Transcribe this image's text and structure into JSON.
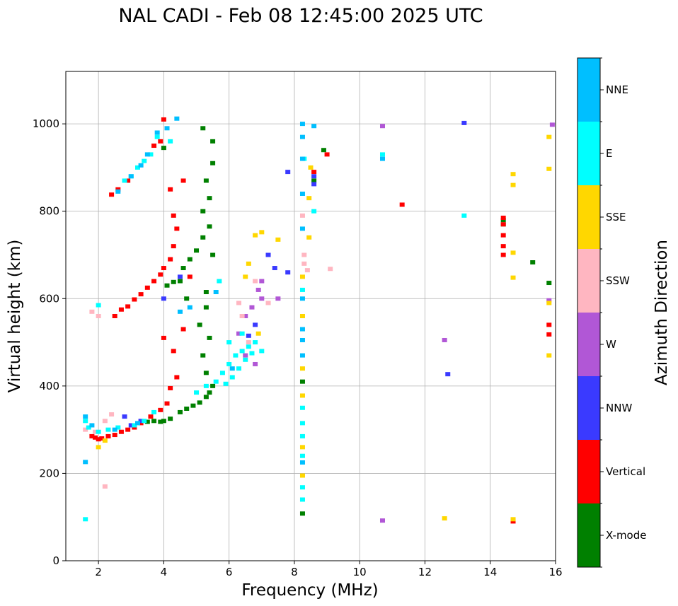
{
  "chart_data": {
    "type": "scatter",
    "title": "NAL CADI - Feb 08 12:45:00 2025 UTC",
    "xlabel": "Frequency (MHz)",
    "ylabel": "Virtual height (km)",
    "xlim": [
      1,
      16
    ],
    "ylim": [
      0,
      1120
    ],
    "xticks": [
      2,
      4,
      6,
      8,
      10,
      12,
      14,
      16
    ],
    "yticks": [
      0,
      200,
      400,
      600,
      800,
      1000
    ],
    "grid": true,
    "colorbar": {
      "label": "Azimuth Direction",
      "categories": [
        {
          "name": "X-mode",
          "color": "#008000"
        },
        {
          "name": "Vertical",
          "color": "#ff0000"
        },
        {
          "name": "NNW",
          "color": "#3a3aff"
        },
        {
          "name": "W",
          "color": "#b157d6"
        },
        {
          "name": "SSW",
          "color": "#ffb6c1"
        },
        {
          "name": "SSE",
          "color": "#ffd700"
        },
        {
          "name": "E",
          "color": "#00ffff"
        },
        {
          "name": "NNE",
          "color": "#00bfff"
        }
      ]
    },
    "series": [
      {
        "name": "X-mode",
        "points": [
          [
            3.5,
            318
          ],
          [
            3.7,
            320
          ],
          [
            3.9,
            318
          ],
          [
            4.0,
            320
          ],
          [
            4.2,
            325
          ],
          [
            4.5,
            340
          ],
          [
            4.7,
            348
          ],
          [
            4.9,
            355
          ],
          [
            5.1,
            362
          ],
          [
            5.3,
            375
          ],
          [
            5.4,
            385
          ],
          [
            5.5,
            400
          ],
          [
            5.3,
            430
          ],
          [
            5.2,
            470
          ],
          [
            5.4,
            510
          ],
          [
            5.1,
            540
          ],
          [
            5.3,
            580
          ],
          [
            4.5,
            640
          ],
          [
            4.3,
            638
          ],
          [
            4.1,
            630
          ],
          [
            4.6,
            670
          ],
          [
            4.8,
            690
          ],
          [
            5.0,
            710
          ],
          [
            5.2,
            740
          ],
          [
            5.4,
            765
          ],
          [
            5.2,
            800
          ],
          [
            5.4,
            830
          ],
          [
            5.3,
            870
          ],
          [
            5.5,
            910
          ],
          [
            4.7,
            600
          ],
          [
            5.3,
            615
          ],
          [
            5.5,
            700
          ],
          [
            8.25,
            410
          ],
          [
            8.25,
            108
          ],
          [
            14.4,
            770
          ],
          [
            14.4,
            780
          ],
          [
            15.3,
            683
          ],
          [
            15.8,
            636
          ],
          [
            8.6,
            870
          ],
          [
            8.9,
            940
          ],
          [
            4.0,
            945
          ],
          [
            5.5,
            960
          ],
          [
            5.2,
            990
          ]
        ]
      },
      {
        "name": "Vertical",
        "points": [
          [
            1.8,
            285
          ],
          [
            1.9,
            282
          ],
          [
            2.0,
            278
          ],
          [
            2.1,
            280
          ],
          [
            2.3,
            285
          ],
          [
            2.5,
            288
          ],
          [
            2.7,
            295
          ],
          [
            2.9,
            300
          ],
          [
            3.1,
            305
          ],
          [
            3.3,
            315
          ],
          [
            3.6,
            330
          ],
          [
            3.9,
            345
          ],
          [
            4.1,
            360
          ],
          [
            4.2,
            395
          ],
          [
            4.4,
            420
          ],
          [
            4.3,
            480
          ],
          [
            4.6,
            530
          ],
          [
            4.0,
            510
          ],
          [
            2.5,
            560
          ],
          [
            2.7,
            575
          ],
          [
            2.9,
            582
          ],
          [
            3.1,
            598
          ],
          [
            3.3,
            610
          ],
          [
            3.5,
            625
          ],
          [
            3.7,
            640
          ],
          [
            3.9,
            655
          ],
          [
            4.0,
            670
          ],
          [
            4.2,
            690
          ],
          [
            4.3,
            720
          ],
          [
            4.4,
            760
          ],
          [
            4.3,
            790
          ],
          [
            2.4,
            838
          ],
          [
            2.6,
            850
          ],
          [
            2.9,
            870
          ],
          [
            3.7,
            950
          ],
          [
            3.9,
            960
          ],
          [
            4.0,
            1010
          ],
          [
            4.6,
            870
          ],
          [
            4.2,
            850
          ],
          [
            4.8,
            650
          ],
          [
            9.0,
            930
          ],
          [
            11.3,
            815
          ],
          [
            14.4,
            745
          ],
          [
            14.4,
            720
          ],
          [
            14.4,
            700
          ],
          [
            14.4,
            770
          ],
          [
            14.4,
            785
          ],
          [
            15.8,
            540
          ],
          [
            15.8,
            518
          ],
          [
            14.7,
            90
          ],
          [
            8.6,
            890
          ]
        ]
      },
      {
        "name": "NNW",
        "points": [
          [
            2.8,
            330
          ],
          [
            3.0,
            310
          ],
          [
            3.3,
            320
          ],
          [
            4.5,
            650
          ],
          [
            4.0,
            600
          ],
          [
            7.2,
            700
          ],
          [
            7.4,
            670
          ],
          [
            7.8,
            660
          ],
          [
            8.6,
            880
          ],
          [
            8.6,
            862
          ],
          [
            12.7,
            427
          ],
          [
            13.2,
            1002
          ],
          [
            7.8,
            890
          ],
          [
            6.6,
            515
          ],
          [
            6.8,
            540
          ]
        ]
      },
      {
        "name": "W",
        "points": [
          [
            6.5,
            560
          ],
          [
            6.7,
            580
          ],
          [
            6.9,
            620
          ],
          [
            7.0,
            640
          ],
          [
            6.3,
            520
          ],
          [
            6.5,
            470
          ],
          [
            6.8,
            450
          ],
          [
            7.0,
            600
          ],
          [
            10.7,
            995
          ],
          [
            10.7,
            92
          ],
          [
            12.6,
            505
          ],
          [
            15.8,
            596
          ],
          [
            15.9,
            998
          ],
          [
            7.5,
            600
          ]
        ]
      },
      {
        "name": "SSW",
        "points": [
          [
            1.6,
            300
          ],
          [
            1.9,
            295
          ],
          [
            2.2,
            320
          ],
          [
            2.4,
            335
          ],
          [
            1.8,
            570
          ],
          [
            2.0,
            560
          ],
          [
            6.8,
            640
          ],
          [
            6.3,
            590
          ],
          [
            6.4,
            560
          ],
          [
            6.6,
            500
          ],
          [
            8.3,
            700
          ],
          [
            8.3,
            680
          ],
          [
            8.4,
            665
          ],
          [
            9.1,
            668
          ],
          [
            7.2,
            590
          ],
          [
            2.2,
            170
          ],
          [
            8.25,
            790
          ]
        ]
      },
      {
        "name": "SSE",
        "points": [
          [
            2.0,
            260
          ],
          [
            2.2,
            275
          ],
          [
            6.8,
            745
          ],
          [
            7.0,
            752
          ],
          [
            6.6,
            680
          ],
          [
            6.5,
            650
          ],
          [
            6.9,
            520
          ],
          [
            7.5,
            735
          ],
          [
            8.25,
            650
          ],
          [
            8.25,
            560
          ],
          [
            8.25,
            440
          ],
          [
            8.25,
            378
          ],
          [
            8.25,
            260
          ],
          [
            8.25,
            195
          ],
          [
            8.45,
            830
          ],
          [
            8.45,
            740
          ],
          [
            8.5,
            900
          ],
          [
            12.6,
            97
          ],
          [
            14.7,
            95
          ],
          [
            14.7,
            648
          ],
          [
            14.7,
            705
          ],
          [
            14.7,
            860
          ],
          [
            14.7,
            885
          ],
          [
            15.8,
            970
          ],
          [
            15.8,
            897
          ],
          [
            15.8,
            590
          ],
          [
            15.8,
            470
          ]
        ]
      },
      {
        "name": "E",
        "points": [
          [
            1.6,
            320
          ],
          [
            1.7,
            305
          ],
          [
            2.0,
            295
          ],
          [
            2.3,
            300
          ],
          [
            2.6,
            305
          ],
          [
            3.1,
            310
          ],
          [
            3.4,
            320
          ],
          [
            3.7,
            340
          ],
          [
            5.0,
            385
          ],
          [
            5.3,
            400
          ],
          [
            5.6,
            410
          ],
          [
            5.8,
            430
          ],
          [
            6.0,
            450
          ],
          [
            6.2,
            470
          ],
          [
            6.4,
            480
          ],
          [
            6.6,
            490
          ],
          [
            6.8,
            500
          ],
          [
            7.0,
            480
          ],
          [
            6.1,
            420
          ],
          [
            6.3,
            440
          ],
          [
            6.5,
            460
          ],
          [
            6.7,
            475
          ],
          [
            5.9,
            405
          ],
          [
            6.4,
            520
          ],
          [
            6.0,
            500
          ],
          [
            1.6,
            95
          ],
          [
            2.8,
            870
          ],
          [
            3.0,
            880
          ],
          [
            3.2,
            900
          ],
          [
            3.4,
            915
          ],
          [
            3.6,
            930
          ],
          [
            3.8,
            970
          ],
          [
            4.2,
            960
          ],
          [
            8.25,
            620
          ],
          [
            8.25,
            350
          ],
          [
            8.25,
            315
          ],
          [
            8.25,
            285
          ],
          [
            8.25,
            240
          ],
          [
            8.25,
            168
          ],
          [
            8.25,
            140
          ],
          [
            8.3,
            920
          ],
          [
            8.6,
            800
          ],
          [
            10.7,
            930
          ],
          [
            13.2,
            790
          ],
          [
            2.0,
            585
          ],
          [
            5.7,
            640
          ]
        ]
      },
      {
        "name": "NNE",
        "points": [
          [
            1.6,
            330
          ],
          [
            1.8,
            310
          ],
          [
            2.5,
            300
          ],
          [
            3.2,
            315
          ],
          [
            4.5,
            570
          ],
          [
            4.8,
            580
          ],
          [
            5.6,
            615
          ],
          [
            2.6,
            845
          ],
          [
            3.0,
            880
          ],
          [
            3.3,
            905
          ],
          [
            3.5,
            930
          ],
          [
            3.8,
            980
          ],
          [
            4.1,
            990
          ],
          [
            4.4,
            1012
          ],
          [
            8.25,
            1000
          ],
          [
            8.25,
            970
          ],
          [
            8.25,
            920
          ],
          [
            8.25,
            840
          ],
          [
            8.25,
            760
          ],
          [
            8.25,
            600
          ],
          [
            8.25,
            530
          ],
          [
            8.25,
            505
          ],
          [
            8.25,
            470
          ],
          [
            8.25,
            225
          ],
          [
            8.6,
            995
          ],
          [
            10.7,
            920
          ],
          [
            6.1,
            440
          ],
          [
            1.6,
            226
          ]
        ]
      }
    ]
  }
}
